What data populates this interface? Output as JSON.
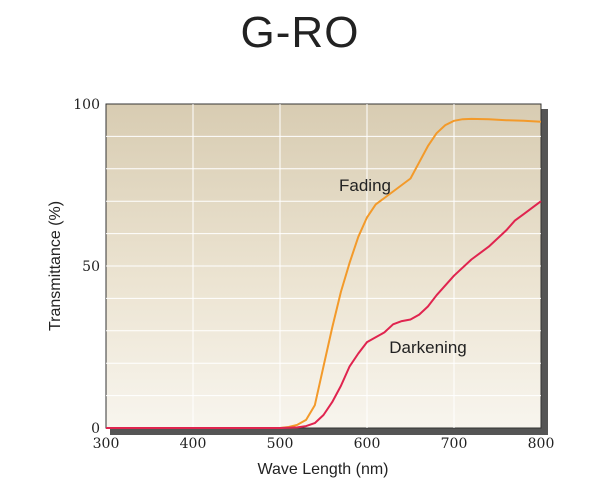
{
  "chart_data": {
    "type": "line",
    "title": "G-RO",
    "xlabel": "Wave Length (nm)",
    "ylabel": "Transmittance (%)",
    "xlim": [
      300,
      800
    ],
    "ylim": [
      0,
      100
    ],
    "x_ticks": [
      300,
      400,
      500,
      600,
      700,
      800
    ],
    "y_ticks": [
      0,
      50,
      100
    ],
    "x_tick_labels": [
      "300",
      "400",
      "500",
      "600",
      "700",
      "800"
    ],
    "y_tick_labels": [
      "0",
      "50",
      "100"
    ],
    "grid": true,
    "series": [
      {
        "name": "Fading",
        "color": "#f39a2a",
        "x": [
          300,
          400,
          500,
          510,
          520,
          530,
          540,
          550,
          560,
          570,
          580,
          590,
          600,
          610,
          620,
          630,
          640,
          650,
          660,
          670,
          680,
          690,
          700,
          710,
          720,
          740,
          760,
          780,
          800
        ],
        "y": [
          0,
          0,
          0,
          0.3,
          1,
          2.5,
          7,
          19,
          31,
          42,
          51,
          59,
          65,
          69,
          71,
          73,
          75,
          77,
          82,
          87,
          91,
          93.5,
          94.8,
          95.3,
          95.4,
          95.3,
          95,
          94.8,
          94.5
        ]
      },
      {
        "name": "Darkening",
        "color": "#e0244f",
        "x": [
          300,
          400,
          500,
          520,
          530,
          540,
          550,
          560,
          570,
          580,
          590,
          600,
          610,
          620,
          630,
          640,
          650,
          660,
          670,
          680,
          690,
          700,
          720,
          740,
          760,
          770,
          780,
          790,
          800
        ],
        "y": [
          0,
          0,
          0,
          0.2,
          0.6,
          1.5,
          4,
          8,
          13,
          19,
          23,
          26.5,
          28,
          29.5,
          32,
          33,
          33.5,
          35,
          37.5,
          41,
          44,
          47,
          52,
          56,
          61,
          64,
          66,
          68,
          70
        ]
      }
    ]
  }
}
